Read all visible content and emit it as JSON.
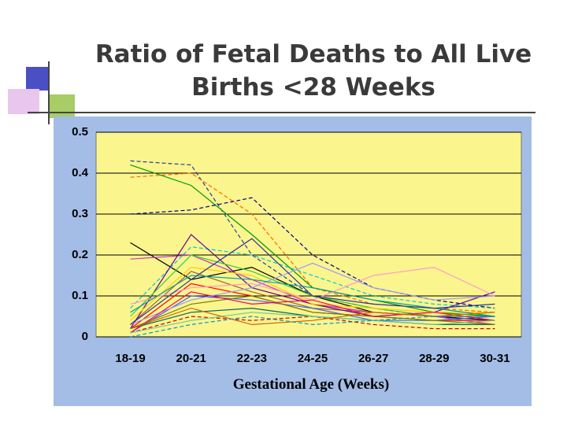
{
  "chart_data": {
    "type": "line",
    "title": [
      "Ratio of Fetal Deaths to All Live",
      "Births <28 Weeks"
    ],
    "x_label": "Gestational Age (Weeks)",
    "categories": [
      "18-19",
      "20-21",
      "22-23",
      "24-25",
      "26-27",
      "28-29",
      "30-31"
    ],
    "ylim": [
      0,
      0.5
    ],
    "yticks": [
      0,
      0.1,
      0.2,
      0.3,
      0.4,
      0.5
    ],
    "grid": true,
    "series": [
      {
        "color": "#1f3f9f",
        "dashed": true,
        "values": [
          0.43,
          0.42,
          0.2,
          0.1,
          0.07,
          0.05,
          0.04
        ]
      },
      {
        "color": "#ff6600",
        "dashed": true,
        "values": [
          0.39,
          0.4,
          0.3,
          0.12,
          0.08,
          0.07,
          0.06
        ]
      },
      {
        "color": "#009900",
        "dashed": false,
        "values": [
          0.42,
          0.37,
          0.25,
          0.12,
          0.09,
          0.06,
          0.05
        ]
      },
      {
        "color": "#000080",
        "dashed": true,
        "values": [
          0.3,
          0.31,
          0.34,
          0.2,
          0.12,
          0.09,
          0.07
        ]
      },
      {
        "color": "#000000",
        "dashed": false,
        "values": [
          0.23,
          0.14,
          0.17,
          0.1,
          0.06,
          0.05,
          0.04
        ]
      },
      {
        "color": "#cc33cc",
        "dashed": false,
        "values": [
          0.19,
          0.2,
          0.14,
          0.08,
          0.06,
          0.05,
          0.03
        ]
      },
      {
        "color": "#00cccc",
        "dashed": true,
        "values": [
          0.07,
          0.22,
          0.2,
          0.15,
          0.1,
          0.08,
          0.07
        ]
      },
      {
        "color": "#ff0000",
        "dashed": false,
        "values": [
          0.02,
          0.13,
          0.1,
          0.06,
          0.05,
          0.04,
          0.04
        ]
      },
      {
        "color": "#996633",
        "dashed": false,
        "values": [
          0.03,
          0.16,
          0.11,
          0.07,
          0.06,
          0.05,
          0.05
        ]
      },
      {
        "color": "#660099",
        "dashed": false,
        "values": [
          0.02,
          0.25,
          0.12,
          0.08,
          0.05,
          0.06,
          0.11
        ]
      },
      {
        "color": "#33cc33",
        "dashed": false,
        "values": [
          0.05,
          0.2,
          0.16,
          0.1,
          0.07,
          0.05,
          0.06
        ]
      },
      {
        "color": "#ff99cc",
        "dashed": false,
        "values": [
          0.08,
          0.12,
          0.13,
          0.09,
          0.15,
          0.17,
          0.1
        ]
      },
      {
        "color": "#3366ff",
        "dashed": false,
        "values": [
          0.01,
          0.1,
          0.09,
          0.07,
          0.04,
          0.04,
          0.05
        ]
      },
      {
        "color": "#ffcc00",
        "dashed": false,
        "values": [
          0.04,
          0.17,
          0.15,
          0.08,
          0.07,
          0.06,
          0.06
        ]
      },
      {
        "color": "#006666",
        "dashed": false,
        "values": [
          0.02,
          0.06,
          0.07,
          0.05,
          0.04,
          0.03,
          0.03
        ]
      },
      {
        "color": "#cc0000",
        "dashed": true,
        "values": [
          0.01,
          0.05,
          0.04,
          0.05,
          0.03,
          0.02,
          0.02
        ]
      },
      {
        "color": "#9999ff",
        "dashed": false,
        "values": [
          0.03,
          0.09,
          0.12,
          0.18,
          0.12,
          0.09,
          0.1
        ]
      },
      {
        "color": "#00a0a0",
        "dashed": false,
        "values": [
          0.06,
          0.15,
          0.14,
          0.12,
          0.09,
          0.07,
          0.05
        ]
      },
      {
        "color": "#808000",
        "dashed": false,
        "values": [
          0.02,
          0.08,
          0.1,
          0.06,
          0.05,
          0.04,
          0.03
        ]
      },
      {
        "color": "#ff0066",
        "dashed": false,
        "values": [
          0.01,
          0.11,
          0.08,
          0.09,
          0.05,
          0.06,
          0.04
        ]
      },
      {
        "color": "#333399",
        "dashed": false,
        "values": [
          0.03,
          0.14,
          0.24,
          0.1,
          0.08,
          0.07,
          0.08
        ]
      },
      {
        "color": "#66cc99",
        "dashed": false,
        "values": [
          0.01,
          0.04,
          0.06,
          0.05,
          0.04,
          0.03,
          0.04
        ]
      },
      {
        "color": "#cc6600",
        "dashed": false,
        "values": [
          0.02,
          0.07,
          0.03,
          0.04,
          0.06,
          0.05,
          0.06
        ]
      },
      {
        "color": "#0099cc",
        "dashed": true,
        "values": [
          0.0,
          0.03,
          0.05,
          0.03,
          0.04,
          0.05,
          0.05
        ]
      }
    ]
  }
}
